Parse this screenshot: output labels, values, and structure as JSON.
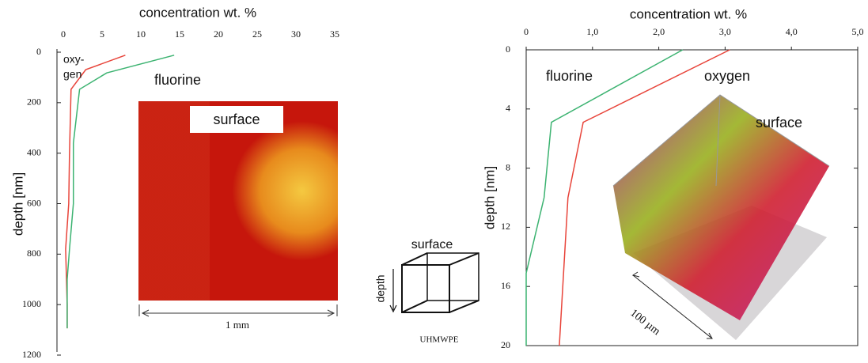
{
  "chart_data": [
    {
      "type": "line",
      "xlabel": "concentration wt. %",
      "ylabel": "depth [nm]",
      "xlim": [
        0,
        35
      ],
      "xticks": [
        0,
        5,
        10,
        15,
        20,
        25,
        30,
        35
      ],
      "ylim": [
        0,
        1200
      ],
      "yticks": [
        0,
        200,
        400,
        600,
        800,
        1000,
        1200
      ],
      "y_inverted": true,
      "series": [
        {
          "color": "#e8443a",
          "x": [
            8.0,
            2.9,
            1.0,
            0.8,
            0.7,
            0.3,
            0.5,
            0.5
          ],
          "y": [
            12,
            69,
            147,
            400,
            600,
            780,
            1000,
            1094
          ]
        },
        {
          "color": "#3cb371",
          "x": [
            14.3,
            5.6,
            2.1,
            1.3,
            1.3,
            0.8,
            0.5,
            0.5
          ],
          "y": [
            12,
            82,
            147,
            360,
            600,
            780,
            900,
            1094
          ]
        }
      ],
      "annotations": [
        "oxy-",
        "gen",
        "fluorine",
        "surface",
        "1 mm"
      ]
    },
    {
      "type": "line",
      "xlabel": "concentration wt. %",
      "ylabel": "depth [nm]",
      "xlim": [
        0,
        5
      ],
      "xticks": [
        0,
        {
          "value": 1,
          "label": "1,0"
        },
        {
          "value": 2,
          "label": "2,0"
        },
        {
          "value": 3,
          "label": "3,0"
        },
        {
          "value": 4,
          "label": "4,0"
        },
        {
          "value": 5,
          "label": "5,0"
        }
      ],
      "ylim": [
        0,
        20
      ],
      "yticks": [
        0,
        4,
        8,
        12,
        16,
        20
      ],
      "y_inverted": true,
      "series": [
        {
          "color": "#3cb371",
          "x": [
            2.36,
            0.38,
            0.27,
            0,
            0
          ],
          "y": [
            0,
            4.9,
            10,
            15.1,
            20
          ]
        },
        {
          "color": "#e8443a",
          "x": [
            3.07,
            0.86,
            0.63,
            0.5
          ],
          "y": [
            0,
            4.9,
            10,
            20
          ]
        }
      ],
      "annotations": [
        "fluorine",
        "oxygen",
        "surface",
        "100 µm"
      ]
    }
  ],
  "diagram": {
    "top": "surface",
    "side": "depth",
    "label": "UHMWPE"
  }
}
